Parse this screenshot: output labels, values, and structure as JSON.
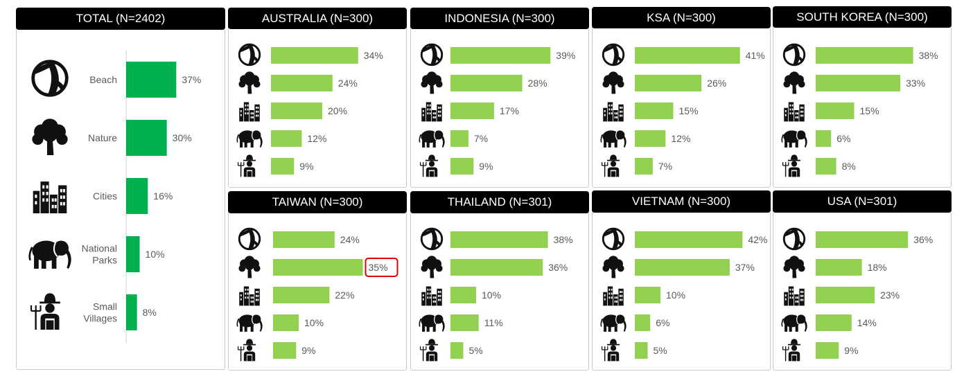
{
  "colors": {
    "total_bar": "#00b04f",
    "country_bar": "#92d050",
    "header_bg": "#000000",
    "highlight": "#e00000"
  },
  "icon_names": [
    "beach-ball-icon",
    "tree-icon",
    "city-buildings-icon",
    "elephant-icon",
    "farmer-icon"
  ],
  "chart_data": [
    {
      "type": "bar",
      "orientation": "horizontal",
      "title": "TOTAL (N=2402)",
      "categories": [
        "Beach",
        "Nature",
        "Cities",
        "National Parks",
        "Small Villages"
      ],
      "values": [
        37,
        30,
        16,
        10,
        8
      ],
      "value_labels": [
        "37%",
        "30%",
        "16%",
        "10%",
        "8%"
      ],
      "xlim": [
        0,
        45
      ]
    },
    {
      "type": "bar",
      "orientation": "horizontal",
      "title": "AUSTRALIA (N=300)",
      "values": [
        34,
        24,
        20,
        12,
        9
      ],
      "value_labels": [
        "34%",
        "24%",
        "20%",
        "12%",
        "9%"
      ],
      "xlim": [
        0,
        45
      ]
    },
    {
      "type": "bar",
      "orientation": "horizontal",
      "title": "INDONESIA (N=300)",
      "values": [
        39,
        28,
        17,
        7,
        9
      ],
      "value_labels": [
        "39%",
        "28%",
        "17%",
        "7%",
        "9%"
      ],
      "xlim": [
        0,
        45
      ]
    },
    {
      "type": "bar",
      "orientation": "horizontal",
      "title": "KSA (N=300)",
      "values": [
        41,
        26,
        15,
        12,
        7
      ],
      "value_labels": [
        "41%",
        "26%",
        "15%",
        "12%",
        "7%"
      ],
      "xlim": [
        0,
        45
      ]
    },
    {
      "type": "bar",
      "orientation": "horizontal",
      "title": "SOUTH KOREA (N=300)",
      "values": [
        38,
        33,
        15,
        6,
        8
      ],
      "value_labels": [
        "38%",
        "33%",
        "15%",
        "6%",
        "8%"
      ],
      "xlim": [
        0,
        45
      ]
    },
    {
      "type": "bar",
      "orientation": "horizontal",
      "title": "TAIWAN (N=300)",
      "values": [
        24,
        35,
        22,
        10,
        9
      ],
      "value_labels": [
        "24%",
        "35%",
        "22%",
        "10%",
        "9%"
      ],
      "highlight_index": 1,
      "xlim": [
        0,
        45
      ]
    },
    {
      "type": "bar",
      "orientation": "horizontal",
      "title": "THAILAND (N=301)",
      "values": [
        38,
        36,
        10,
        11,
        5
      ],
      "value_labels": [
        "38%",
        "36%",
        "10%",
        "11%",
        "5%"
      ],
      "xlim": [
        0,
        45
      ]
    },
    {
      "type": "bar",
      "orientation": "horizontal",
      "title": "VIETNAM (N=300)",
      "values": [
        42,
        37,
        10,
        6,
        5
      ],
      "value_labels": [
        "42%",
        "37%",
        "10%",
        "6%",
        "5%"
      ],
      "xlim": [
        0,
        45
      ]
    },
    {
      "type": "bar",
      "orientation": "horizontal",
      "title": "USA (N=301)",
      "values": [
        36,
        18,
        23,
        14,
        9
      ],
      "value_labels": [
        "36%",
        "18%",
        "23%",
        "14%",
        "9%"
      ],
      "xlim": [
        0,
        45
      ]
    }
  ]
}
